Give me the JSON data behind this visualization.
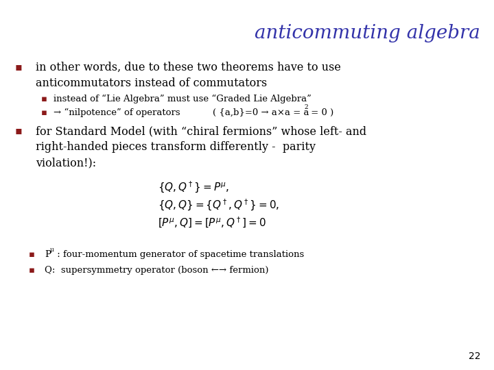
{
  "title": "anticommuting algebra",
  "title_color": "#3333aa",
  "title_style": "italic",
  "title_fontsize": 20,
  "bg_color": "#ffffff",
  "bullet_color": "#8B1A1A",
  "text_color": "#000000",
  "slide_number": "22",
  "bullet1_line1": "in other words, due to these two theorems have to use",
  "bullet1_line2": "anticommutators instead of commutators",
  "sub_bullet1": "instead of “Lie Algebra” must use “Graded Lie Algebra”",
  "sub_bullet2_part1": "→ “nilpotence” of operators",
  "sub_bullet2_math": "( {a,b}=0 → a×a = a",
  "sub_bullet2_sup": "2",
  "sub_bullet2_end": " = 0 )",
  "bullet2_line1": "for Standard Model (with “chiral fermions” whose left- and",
  "bullet2_line2": "right-handed pieces transform differently -  parity",
  "bullet2_line3": "violation!):",
  "eq1": "$\\{Q, Q^\\dagger\\} = P^\\mu,$",
  "eq2": "$\\{Q, Q\\} = \\{Q^\\dagger, Q^\\dagger\\} = 0,$",
  "eq3": "$[P^\\mu, Q] = [P^\\mu, Q^\\dagger] = 0$",
  "footnote1_pre": "P",
  "footnote1_sup": "μ",
  "footnote1_post": " : four-momentum generator of spacetime translations",
  "footnote2": "Q:  supersymmetry operator (boson ←→ fermion)"
}
